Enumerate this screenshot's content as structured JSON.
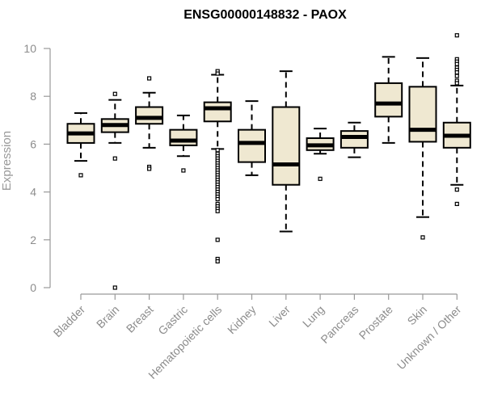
{
  "chart_data": {
    "type": "boxplot",
    "title": "ENSG00000148832 - PAOX",
    "xlabel": "",
    "ylabel": "Expression",
    "ylim": [
      0,
      10.5
    ],
    "yticks": [
      0,
      2,
      4,
      6,
      8,
      10
    ],
    "colors": {
      "box_fill": "#efe8d1",
      "box_stroke": "#000000",
      "axis": "#999999",
      "tick_text": "#8c8c8c"
    },
    "categories": [
      "Bladder",
      "Brain",
      "Breast",
      "Gastric",
      "Hematopoietic cells",
      "Kidney",
      "Liver",
      "Lung",
      "Pancreas",
      "Prostate",
      "Skin",
      "Unknown / Other"
    ],
    "boxes": [
      {
        "name": "Bladder",
        "whisker_low": 5.3,
        "q1": 6.05,
        "median": 6.45,
        "q3": 6.85,
        "whisker_high": 7.3,
        "outliers": [
          4.7
        ]
      },
      {
        "name": "Brain",
        "whisker_low": 6.05,
        "q1": 6.5,
        "median": 6.8,
        "q3": 7.05,
        "whisker_high": 7.85,
        "outliers": [
          8.1,
          5.4,
          0.0
        ]
      },
      {
        "name": "Breast",
        "whisker_low": 5.85,
        "q1": 6.85,
        "median": 7.1,
        "q3": 7.55,
        "whisker_high": 8.15,
        "outliers": [
          8.75,
          5.05,
          4.97
        ]
      },
      {
        "name": "Gastric",
        "whisker_low": 5.5,
        "q1": 5.95,
        "median": 6.15,
        "q3": 6.6,
        "whisker_high": 7.2,
        "outliers": [
          4.9
        ]
      },
      {
        "name": "Hematopoietic cells",
        "whisker_low": 5.8,
        "q1": 6.95,
        "median": 7.5,
        "q3": 7.75,
        "whisker_high": 8.9,
        "outliers": [
          9.05,
          8.95,
          5.75,
          5.6,
          5.5,
          5.4,
          5.3,
          5.2,
          5.1,
          5.0,
          4.9,
          4.8,
          4.7,
          4.6,
          4.5,
          4.4,
          4.3,
          4.2,
          4.1,
          4.0,
          3.9,
          3.8,
          3.7,
          3.5,
          3.4,
          3.3,
          3.2,
          2.0,
          1.2,
          1.1
        ]
      },
      {
        "name": "Kidney",
        "whisker_low": 4.7,
        "q1": 5.25,
        "median": 6.05,
        "q3": 6.6,
        "whisker_high": 7.8,
        "outliers": []
      },
      {
        "name": "Liver",
        "whisker_low": 2.35,
        "q1": 4.3,
        "median": 5.15,
        "q3": 7.55,
        "whisker_high": 9.05,
        "outliers": []
      },
      {
        "name": "Lung",
        "whisker_low": 5.6,
        "q1": 5.75,
        "median": 5.95,
        "q3": 6.25,
        "whisker_high": 6.65,
        "outliers": [
          4.55
        ]
      },
      {
        "name": "Pancreas",
        "whisker_low": 5.45,
        "q1": 5.85,
        "median": 6.3,
        "q3": 6.55,
        "whisker_high": 6.9,
        "outliers": []
      },
      {
        "name": "Prostate",
        "whisker_low": 6.05,
        "q1": 7.15,
        "median": 7.7,
        "q3": 8.55,
        "whisker_high": 9.65,
        "outliers": []
      },
      {
        "name": "Skin",
        "whisker_low": 2.95,
        "q1": 6.1,
        "median": 6.6,
        "q3": 8.4,
        "whisker_high": 9.6,
        "outliers": [
          2.1
        ]
      },
      {
        "name": "Unknown / Other",
        "whisker_low": 4.3,
        "q1": 5.85,
        "median": 6.35,
        "q3": 6.9,
        "whisker_high": 8.45,
        "outliers": [
          10.55,
          9.55,
          9.45,
          9.35,
          9.2,
          9.1,
          9.0,
          8.85,
          8.65,
          8.55,
          4.1,
          3.5
        ]
      }
    ]
  }
}
